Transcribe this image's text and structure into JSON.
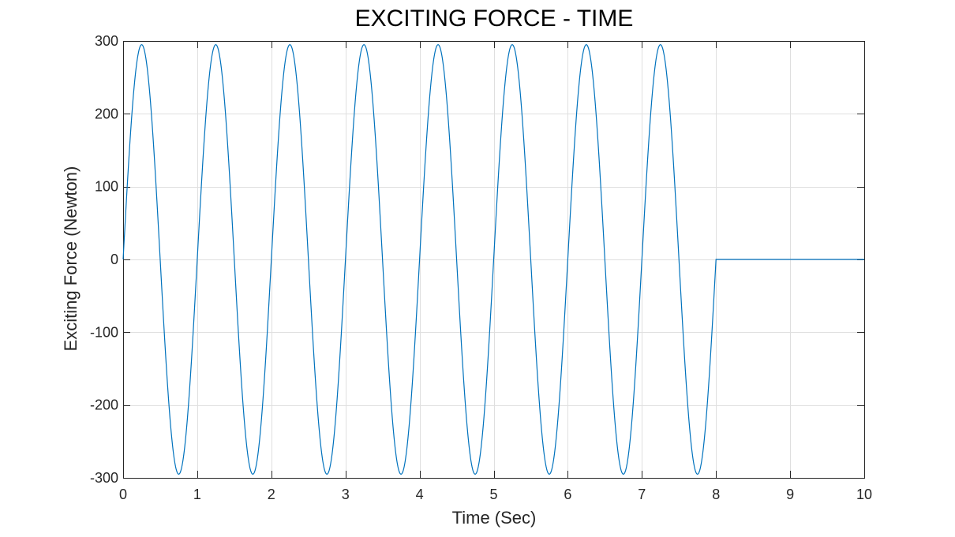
{
  "chart_data": {
    "type": "line",
    "title": "EXCITING FORCE - TIME",
    "xlabel": "Time (Sec)",
    "ylabel": "Exciting Force (Newton)",
    "xlim": [
      0,
      10
    ],
    "ylim": [
      -300,
      300
    ],
    "x_ticks": [
      0,
      1,
      2,
      3,
      4,
      5,
      6,
      7,
      8,
      9,
      10
    ],
    "x_tick_labels": [
      "0",
      "1",
      "2",
      "3",
      "4",
      "5",
      "6",
      "7",
      "8",
      "9",
      "10"
    ],
    "y_ticks": [
      300,
      200,
      100,
      0,
      -100,
      -200,
      -300
    ],
    "y_tick_labels": [
      "300",
      "200",
      "100",
      "0",
      "-100",
      "-200",
      "-300"
    ],
    "grid": true,
    "legend": "none",
    "series": [
      {
        "color": "#0072BD",
        "x": [
          0,
          0.25,
          0.5,
          0.75,
          1,
          1.25,
          1.5,
          1.75,
          2,
          2.25,
          2.5,
          2.75,
          3,
          3.25,
          3.5,
          3.75,
          4,
          4.25,
          4.5,
          4.75,
          5,
          5.25,
          5.5,
          5.75,
          6,
          6.25,
          6.5,
          6.75,
          7,
          7.25,
          7.5,
          7.75,
          8,
          8,
          10
        ],
        "y": [
          0,
          295,
          0,
          -295,
          0,
          295,
          0,
          -295,
          0,
          295,
          0,
          -295,
          0,
          295,
          0,
          -295,
          0,
          295,
          0,
          -295,
          0,
          295,
          0,
          -295,
          0,
          295,
          0,
          -295,
          0,
          295,
          0,
          -295,
          0,
          0,
          0
        ]
      }
    ]
  },
  "colors": {
    "series": "#0072BD",
    "axis": "#262626",
    "grid": "#dfdfdf",
    "background": "#ffffff"
  }
}
